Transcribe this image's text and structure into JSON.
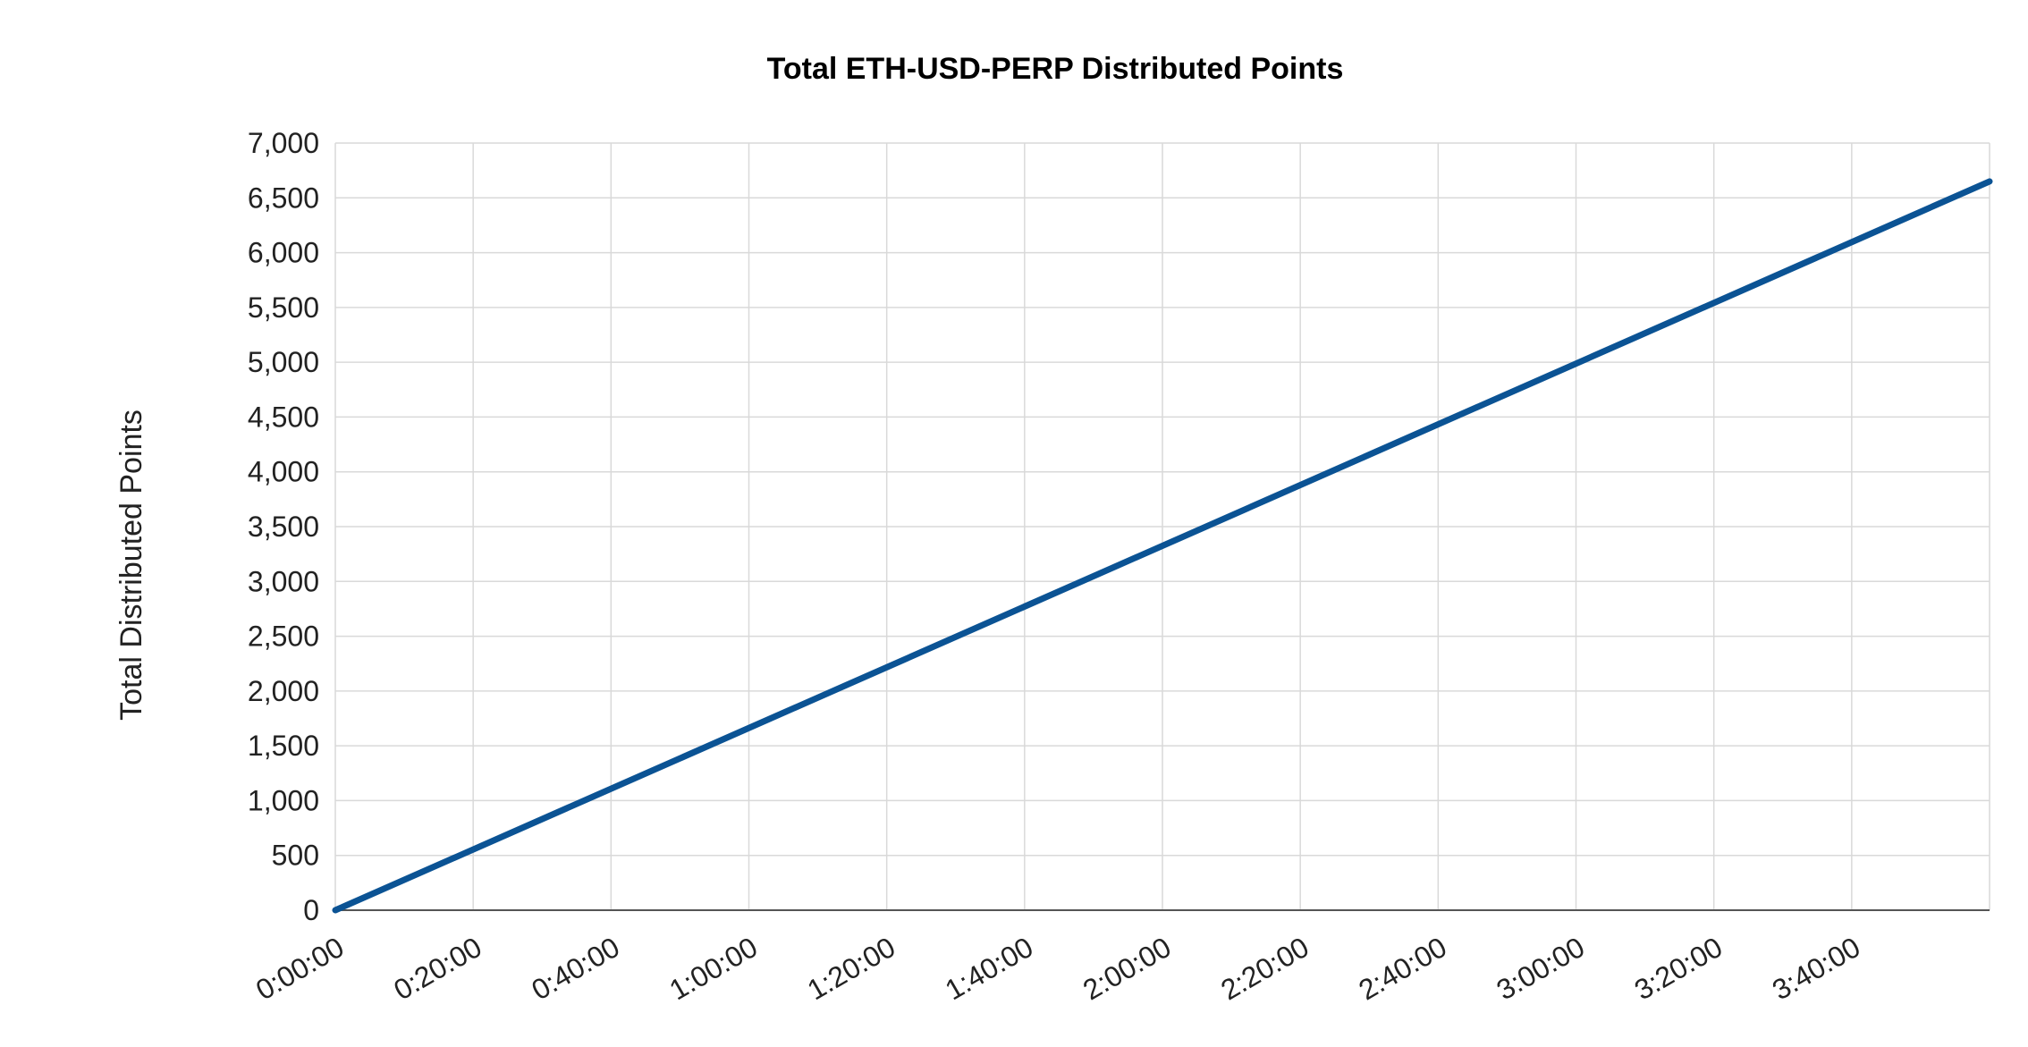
{
  "chart_data": {
    "type": "line",
    "title": "Total ETH-USD-PERP Distributed Points",
    "xlabel": "",
    "ylabel": "Total Distributed Points",
    "x_unit": "elapsed time (h:mm:ss)",
    "x_tick_labels": [
      "0:00:00",
      "0:20:00",
      "0:40:00",
      "1:00:00",
      "1:20:00",
      "1:40:00",
      "2:00:00",
      "2:20:00",
      "2:40:00",
      "3:00:00",
      "3:20:00",
      "3:40:00"
    ],
    "x": [
      "0:00:00",
      "4:00:00"
    ],
    "y": [
      0,
      6650
    ],
    "xlim": [
      "0:00:00",
      "4:00:00"
    ],
    "ylim": [
      0,
      7000
    ],
    "y_ticks": [
      0,
      500,
      1000,
      1500,
      2000,
      2500,
      3000,
      3500,
      4000,
      4500,
      5000,
      5500,
      6000,
      6500,
      7000
    ],
    "y_tick_labels": [
      "0",
      "500",
      "1,000",
      "1,500",
      "2,000",
      "2,500",
      "3,000",
      "3,500",
      "4,000",
      "4,500",
      "5,000",
      "5,500",
      "6,000",
      "6,500",
      "7,000"
    ],
    "grid": true,
    "legend": "none",
    "series": [
      {
        "color": "#0b5394",
        "points": [
          {
            "x": "0:00:00",
            "y": 0
          },
          {
            "x": "4:00:00",
            "y": 6650
          }
        ]
      }
    ]
  },
  "colors": {
    "line": "#0b5394",
    "grid": "#d9d9d9",
    "axis": "#555555",
    "text": "#222222"
  }
}
